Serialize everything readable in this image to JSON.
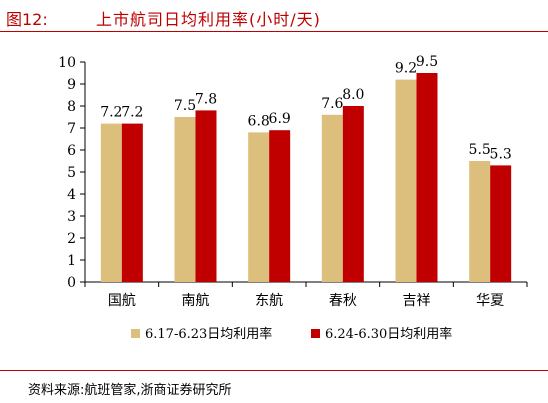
{
  "header": {
    "figure_label": "图12:",
    "title": "上市航司日均利用率(小时/天)"
  },
  "source": "资料来源:航班管家,浙商证券研究所",
  "colors": {
    "series1": "#dcbf7d",
    "series2": "#c00000",
    "accent": "#c00000",
    "axis": "#000000"
  },
  "chart_data": {
    "type": "bar",
    "title": "上市航司日均利用率(小时/天)",
    "categories": [
      "国航",
      "南航",
      "东航",
      "春秋",
      "吉祥",
      "华夏"
    ],
    "series": [
      {
        "name": "6.17-6.23日均利用率",
        "values": [
          7.2,
          7.5,
          6.8,
          7.6,
          9.2,
          5.5
        ],
        "labels": [
          "7.2",
          "7.5",
          "6.8",
          "7.6",
          "9.2",
          "5.5"
        ],
        "color": "#dcbf7d"
      },
      {
        "name": "6.24-6.30日均利用率",
        "values": [
          7.2,
          7.8,
          6.9,
          8.0,
          9.5,
          5.3
        ],
        "labels": [
          "7.2",
          "7.8",
          "6.9",
          "8.0",
          "9.5",
          "5.3"
        ],
        "color": "#c00000"
      }
    ],
    "ylim": [
      0,
      10
    ],
    "yticks": [
      0,
      1,
      2,
      3,
      4,
      5,
      6,
      7,
      8,
      9,
      10
    ],
    "xlabel": "",
    "ylabel": "",
    "grid": false,
    "legend_position": "bottom"
  }
}
